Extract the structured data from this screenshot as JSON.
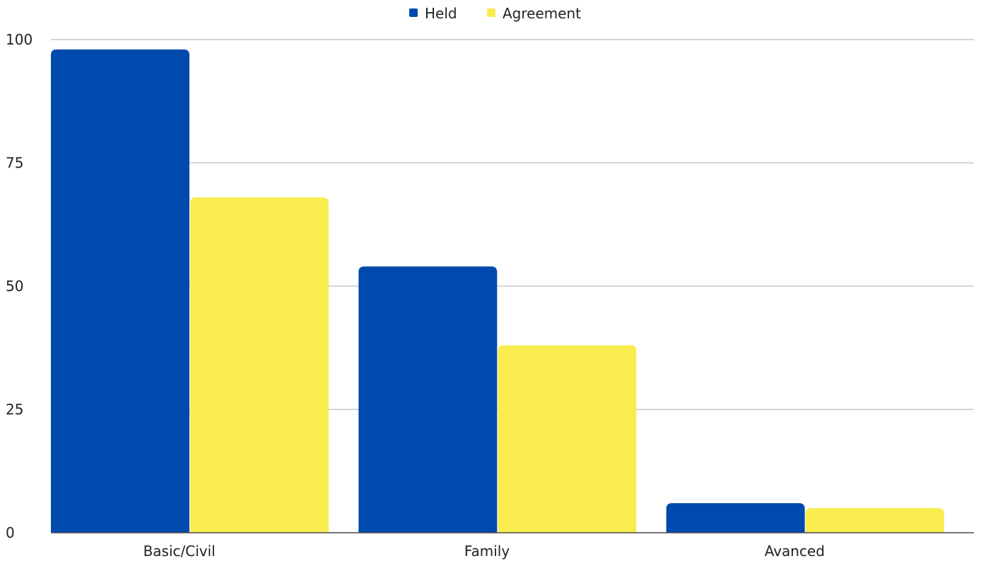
{
  "chart_data": {
    "type": "bar",
    "title": "",
    "xlabel": "",
    "ylabel": "",
    "categories": [
      "Basic/Civil",
      "Family",
      "Avanced"
    ],
    "series": [
      {
        "name": "Held",
        "color": "#004AAD",
        "values": [
          98,
          54,
          6
        ]
      },
      {
        "name": "Agreement",
        "color": "#F8EC4F",
        "values": [
          68,
          38,
          5
        ]
      }
    ],
    "ylim": [
      0,
      100
    ],
    "yticks": [
      0,
      25,
      50,
      75,
      100
    ],
    "grid": true,
    "legend_position": "top-center"
  }
}
